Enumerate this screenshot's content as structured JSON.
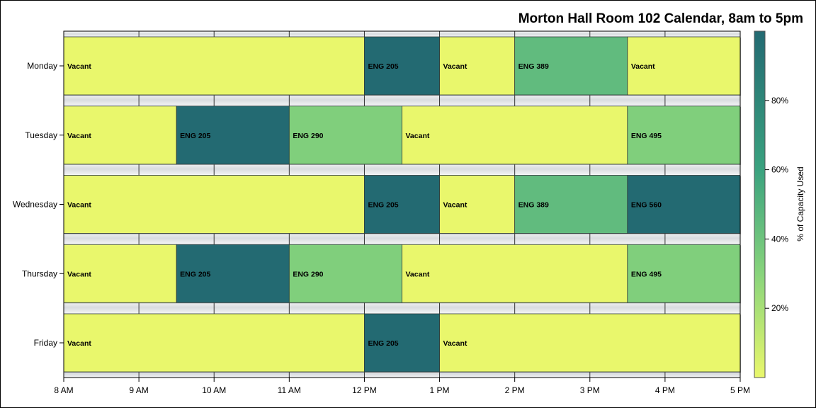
{
  "chart_data": {
    "type": "heatmap",
    "title": "Morton Hall Room 102 Calendar, 8am to 5pm",
    "x_tick_labels": [
      "8 AM",
      "9 AM",
      "10 AM",
      "11 AM",
      "12 PM",
      "1 PM",
      "2 PM",
      "3 PM",
      "4 PM",
      "5 PM"
    ],
    "xlim": [
      8,
      17
    ],
    "days": [
      "Monday",
      "Tuesday",
      "Wednesday",
      "Thursday",
      "Friday"
    ],
    "colorbar": {
      "label": "% of Capacity Used",
      "range": [
        0,
        100
      ],
      "ticks": [
        20,
        40,
        60,
        80
      ],
      "tick_labels": [
        "20%",
        "40%",
        "60%",
        "80%"
      ],
      "colors": [
        "#e9f76c",
        "#88d47c",
        "#3aa27f",
        "#236a72"
      ]
    },
    "rows": [
      {
        "day": "Monday",
        "blocks": [
          {
            "label": "Vacant",
            "start": 8,
            "end": 12,
            "value": 0
          },
          {
            "label": "ENG 205",
            "start": 12,
            "end": 13,
            "value": 100
          },
          {
            "label": "Vacant",
            "start": 13,
            "end": 14,
            "value": 0
          },
          {
            "label": "ENG 389",
            "start": 14,
            "end": 15.5,
            "value": 45
          },
          {
            "label": "Vacant",
            "start": 15.5,
            "end": 17,
            "value": 0
          }
        ]
      },
      {
        "day": "Tuesday",
        "blocks": [
          {
            "label": "Vacant",
            "start": 8,
            "end": 9.5,
            "value": 0
          },
          {
            "label": "ENG 205",
            "start": 9.5,
            "end": 11,
            "value": 100
          },
          {
            "label": "ENG 290",
            "start": 11,
            "end": 12.5,
            "value": 33
          },
          {
            "label": "Vacant",
            "start": 12.5,
            "end": 15.5,
            "value": 0
          },
          {
            "label": "ENG 495",
            "start": 15.5,
            "end": 17,
            "value": 33
          }
        ]
      },
      {
        "day": "Wednesday",
        "blocks": [
          {
            "label": "Vacant",
            "start": 8,
            "end": 12,
            "value": 0
          },
          {
            "label": "ENG 205",
            "start": 12,
            "end": 13,
            "value": 100
          },
          {
            "label": "Vacant",
            "start": 13,
            "end": 14,
            "value": 0
          },
          {
            "label": "ENG 389",
            "start": 14,
            "end": 15.5,
            "value": 45
          },
          {
            "label": "ENG 560",
            "start": 15.5,
            "end": 17,
            "value": 100
          }
        ]
      },
      {
        "day": "Thursday",
        "blocks": [
          {
            "label": "Vacant",
            "start": 8,
            "end": 9.5,
            "value": 0
          },
          {
            "label": "ENG 205",
            "start": 9.5,
            "end": 11,
            "value": 100
          },
          {
            "label": "ENG 290",
            "start": 11,
            "end": 12.5,
            "value": 33
          },
          {
            "label": "Vacant",
            "start": 12.5,
            "end": 15.5,
            "value": 0
          },
          {
            "label": "ENG 495",
            "start": 15.5,
            "end": 17,
            "value": 33
          }
        ]
      },
      {
        "day": "Friday",
        "blocks": [
          {
            "label": "Vacant",
            "start": 8,
            "end": 12,
            "value": 0
          },
          {
            "label": "ENG 205",
            "start": 12,
            "end": 13,
            "value": 100
          },
          {
            "label": "Vacant",
            "start": 13,
            "end": 17,
            "value": 0
          }
        ]
      }
    ]
  }
}
